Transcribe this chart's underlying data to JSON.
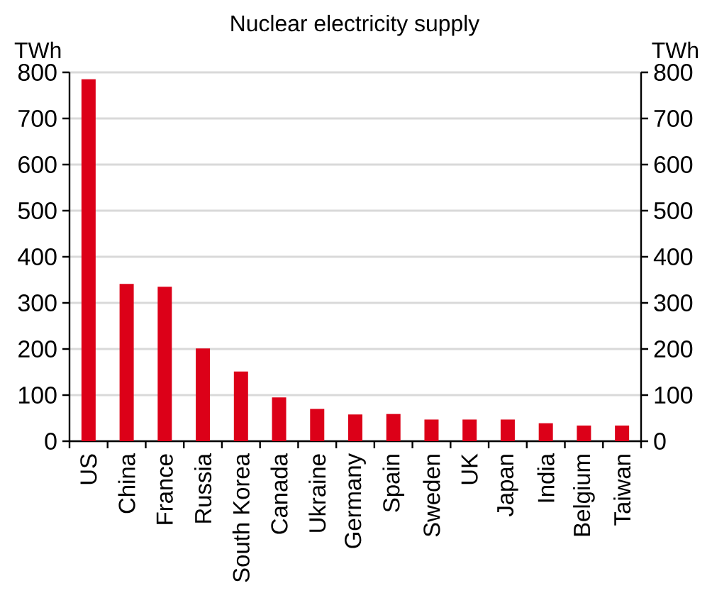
{
  "chart_data": {
    "type": "bar",
    "title": "Nuclear electricity supply",
    "ylabel": "TWh",
    "y2label": "TWh",
    "categories": [
      "US",
      "China",
      "France",
      "Russia",
      "South Korea",
      "Canada",
      "Ukraine",
      "Germany",
      "Spain",
      "Sweden",
      "UK",
      "Japan",
      "India",
      "Belgium",
      "Taiwan"
    ],
    "values": [
      785,
      341,
      335,
      201,
      151,
      95,
      70,
      58,
      59,
      47,
      47,
      47,
      39,
      34,
      34
    ],
    "color": "#dc0018",
    "ylim": [
      0,
      800
    ],
    "yticks": [
      0,
      100,
      200,
      300,
      400,
      500,
      600,
      700,
      800
    ],
    "y2lim": [
      0,
      800
    ],
    "y2ticks": [
      0,
      100,
      200,
      300,
      400,
      500,
      600,
      700,
      800
    ],
    "grid": "y"
  }
}
